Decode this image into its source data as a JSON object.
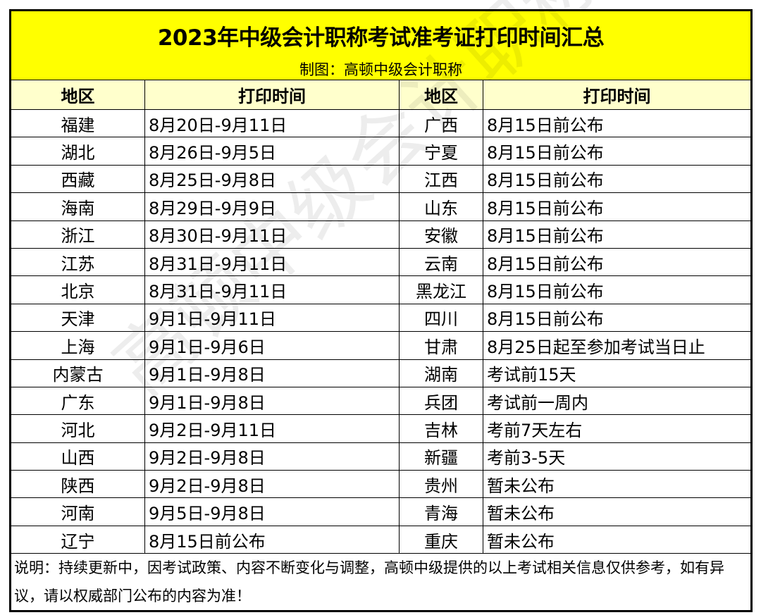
{
  "title": "2023年中级会计职称考试准考证打印时间汇总",
  "subtitle": "制图：高顿中级会计职称",
  "headers": {
    "region": "地区",
    "time": "打印时间"
  },
  "rows": [
    {
      "left_region": "福建",
      "left_time": "8月20日-9月11日",
      "right_region": "广西",
      "right_time": "8月15日前公布"
    },
    {
      "left_region": "湖北",
      "left_time": "8月26日-9月5日",
      "right_region": "宁夏",
      "right_time": "8月15日前公布"
    },
    {
      "left_region": "西藏",
      "left_time": "8月25日-9月8日",
      "right_region": "江西",
      "right_time": "8月15日前公布"
    },
    {
      "left_region": "海南",
      "left_time": "8月29日-9月9日",
      "right_region": "山东",
      "right_time": "8月15日前公布"
    },
    {
      "left_region": "浙江",
      "left_time": "8月30日-9月11日",
      "right_region": "安徽",
      "right_time": "8月15日前公布"
    },
    {
      "left_region": "江苏",
      "left_time": "8月31日-9月11日",
      "right_region": "云南",
      "right_time": "8月15日前公布"
    },
    {
      "left_region": "北京",
      "left_time": "8月31日-9月11日",
      "right_region": "黑龙江",
      "right_time": "8月15日前公布"
    },
    {
      "left_region": "天津",
      "left_time": "9月1日-9月11日",
      "right_region": "四川",
      "right_time": "8月15日前公布"
    },
    {
      "left_region": "上海",
      "left_time": "9月1日-9月6日",
      "right_region": "甘肃",
      "right_time": "8月25日起至参加考试当日止"
    },
    {
      "left_region": "内蒙古",
      "left_time": "9月1日-9月8日",
      "right_region": "湖南",
      "right_time": "考试前15天"
    },
    {
      "left_region": "广东",
      "left_time": "9月1日-9月8日",
      "right_region": "兵团",
      "right_time": "考试前一周内"
    },
    {
      "left_region": "河北",
      "left_time": "9月2日-9月11日",
      "right_region": "吉林",
      "right_time": "考前7天左右"
    },
    {
      "left_region": "山西",
      "left_time": "9月2日-9月8日",
      "right_region": "新疆",
      "right_time": "考前3-5天"
    },
    {
      "left_region": "陕西",
      "left_time": "9月2日-9月8日",
      "right_region": "贵州",
      "right_time": "暂未公布"
    },
    {
      "left_region": "河南",
      "left_time": "9月5日-9月8日",
      "right_region": "青海",
      "right_time": "暂未公布"
    },
    {
      "left_region": "辽宁",
      "left_time": "8月15日前公布",
      "right_region": "重庆",
      "right_time": "暂未公布"
    }
  ],
  "note": "说明：持续更新中，因考试政策、内容不断变化与调整，高顿中级提供的以上考试相关信息仅供参考，如有异议，请以权威部门公布的内容为准！",
  "watermark": "高顿中级会计职称",
  "colors": {
    "title_bg": "#ffff00",
    "header_bg": "#ffffcc"
  }
}
